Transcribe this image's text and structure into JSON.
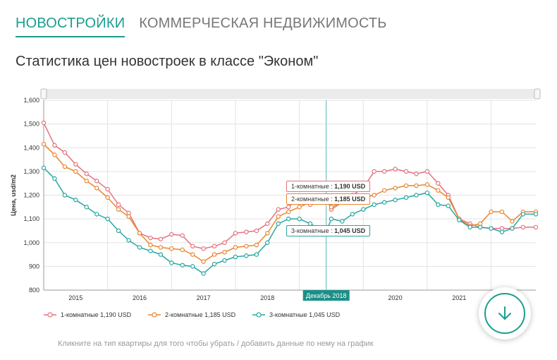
{
  "tabs": [
    {
      "label": "НОВОСТРОЙКИ",
      "active": true
    },
    {
      "label": "КОММЕРЧЕСКАЯ НЕДВИЖИМОСТЬ",
      "active": false
    }
  ],
  "page_title": "Статистика цен новостроек в классе \"Эконом\"",
  "hint": "Кликните на тип квартиры для того чтобы убрать / добавить данные по нему на график",
  "crosshair_label": "Декабрь 2018",
  "tooltips": [
    {
      "prefix": "1-комнатные : ",
      "value": "1,190 USD",
      "color": "#e5717f"
    },
    {
      "prefix": "2-комнатные : ",
      "value": "1,185 USD",
      "color": "#e8862f"
    },
    {
      "prefix": "3-комнатные : ",
      "value": "1,045 USD",
      "color": "#2aa6a0"
    }
  ],
  "legend": [
    {
      "name": "1-комнатные",
      "value": "1,190 USD",
      "color": "#e5717f"
    },
    {
      "name": "2-комнатные",
      "value": "1,185 USD",
      "color": "#e8862f"
    },
    {
      "name": "3-комнатные",
      "value": "1,045 USD",
      "color": "#2aa6a0"
    }
  ],
  "icons": {
    "fab": "arrow-down-circle-icon",
    "scroll_handle": "drag-handle-icon"
  },
  "chart_data": {
    "type": "line",
    "title": "Статистика цен новостроек в классе \"Эконом\"",
    "ylabel": "Цена, usd/m2",
    "ylim": [
      800,
      1600
    ],
    "y_ticks": [
      "800",
      "900",
      "1,000",
      "1,100",
      "1,200",
      "1,300",
      "1,400",
      "1,500",
      "1,600"
    ],
    "x_range": [
      2014.5,
      2022.2
    ],
    "x_ticks": [
      "2015",
      "2016",
      "2017",
      "2018",
      "2019",
      "2020",
      "2021"
    ],
    "grid": true,
    "legend_position": "bottom",
    "series": [
      {
        "name": "1-комнатные",
        "color": "#e5717f",
        "points": [
          [
            2014.5,
            1505
          ],
          [
            2014.67,
            1410
          ],
          [
            2014.83,
            1380
          ],
          [
            2015.0,
            1330
          ],
          [
            2015.17,
            1290
          ],
          [
            2015.33,
            1260
          ],
          [
            2015.5,
            1225
          ],
          [
            2015.67,
            1160
          ],
          [
            2015.83,
            1125
          ],
          [
            2016.0,
            1040
          ],
          [
            2016.17,
            1020
          ],
          [
            2016.33,
            1015
          ],
          [
            2016.5,
            1035
          ],
          [
            2016.67,
            1030
          ],
          [
            2016.83,
            985
          ],
          [
            2017.0,
            975
          ],
          [
            2017.17,
            985
          ],
          [
            2017.33,
            1000
          ],
          [
            2017.5,
            1040
          ],
          [
            2017.67,
            1045
          ],
          [
            2017.83,
            1050
          ],
          [
            2018.0,
            1080
          ],
          [
            2018.17,
            1140
          ],
          [
            2018.33,
            1150
          ],
          [
            2018.5,
            1190
          ],
          [
            2018.67,
            1160
          ],
          [
            2018.83,
            1175
          ],
          [
            2018.92,
            1190
          ],
          [
            2019.0,
            1140
          ],
          [
            2019.17,
            1170
          ],
          [
            2019.33,
            1200
          ],
          [
            2019.5,
            1230
          ],
          [
            2019.67,
            1300
          ],
          [
            2019.83,
            1300
          ],
          [
            2020.0,
            1310
          ],
          [
            2020.17,
            1300
          ],
          [
            2020.33,
            1290
          ],
          [
            2020.5,
            1300
          ],
          [
            2020.67,
            1250
          ],
          [
            2020.83,
            1200
          ],
          [
            2021.0,
            1100
          ],
          [
            2021.17,
            1080
          ],
          [
            2021.33,
            1065
          ],
          [
            2021.5,
            1060
          ],
          [
            2021.67,
            1060
          ],
          [
            2021.83,
            1060
          ],
          [
            2022.0,
            1065
          ],
          [
            2022.2,
            1065
          ]
        ]
      },
      {
        "name": "2-комнатные",
        "color": "#e8862f",
        "points": [
          [
            2014.5,
            1415
          ],
          [
            2014.67,
            1370
          ],
          [
            2014.83,
            1320
          ],
          [
            2015.0,
            1300
          ],
          [
            2015.17,
            1260
          ],
          [
            2015.33,
            1230
          ],
          [
            2015.5,
            1190
          ],
          [
            2015.67,
            1140
          ],
          [
            2015.83,
            1110
          ],
          [
            2016.0,
            1040
          ],
          [
            2016.17,
            990
          ],
          [
            2016.33,
            980
          ],
          [
            2016.5,
            975
          ],
          [
            2016.67,
            970
          ],
          [
            2016.83,
            950
          ],
          [
            2017.0,
            920
          ],
          [
            2017.17,
            950
          ],
          [
            2017.33,
            960
          ],
          [
            2017.5,
            980
          ],
          [
            2017.67,
            985
          ],
          [
            2017.83,
            990
          ],
          [
            2018.0,
            1040
          ],
          [
            2018.17,
            1110
          ],
          [
            2018.33,
            1130
          ],
          [
            2018.5,
            1150
          ],
          [
            2018.67,
            1170
          ],
          [
            2018.83,
            1170
          ],
          [
            2018.92,
            1185
          ],
          [
            2019.0,
            1150
          ],
          [
            2019.17,
            1170
          ],
          [
            2019.33,
            1180
          ],
          [
            2019.5,
            1190
          ],
          [
            2019.67,
            1200
          ],
          [
            2019.83,
            1220
          ],
          [
            2020.0,
            1230
          ],
          [
            2020.17,
            1240
          ],
          [
            2020.33,
            1240
          ],
          [
            2020.5,
            1245
          ],
          [
            2020.67,
            1220
          ],
          [
            2020.83,
            1190
          ],
          [
            2021.0,
            1100
          ],
          [
            2021.17,
            1070
          ],
          [
            2021.33,
            1080
          ],
          [
            2021.5,
            1130
          ],
          [
            2021.67,
            1130
          ],
          [
            2021.83,
            1090
          ],
          [
            2022.0,
            1130
          ],
          [
            2022.2,
            1130
          ]
        ]
      },
      {
        "name": "3-комнатные",
        "color": "#2aa6a0",
        "points": [
          [
            2014.5,
            1315
          ],
          [
            2014.67,
            1270
          ],
          [
            2014.83,
            1200
          ],
          [
            2015.0,
            1180
          ],
          [
            2015.17,
            1150
          ],
          [
            2015.33,
            1120
          ],
          [
            2015.5,
            1100
          ],
          [
            2015.67,
            1050
          ],
          [
            2015.83,
            1010
          ],
          [
            2016.0,
            980
          ],
          [
            2016.17,
            965
          ],
          [
            2016.33,
            950
          ],
          [
            2016.5,
            915
          ],
          [
            2016.67,
            905
          ],
          [
            2016.83,
            900
          ],
          [
            2017.0,
            870
          ],
          [
            2017.17,
            910
          ],
          [
            2017.33,
            925
          ],
          [
            2017.5,
            940
          ],
          [
            2017.67,
            945
          ],
          [
            2017.83,
            950
          ],
          [
            2018.0,
            1000
          ],
          [
            2018.17,
            1080
          ],
          [
            2018.33,
            1100
          ],
          [
            2018.5,
            1100
          ],
          [
            2018.67,
            1080
          ],
          [
            2018.83,
            1055
          ],
          [
            2018.92,
            1045
          ],
          [
            2019.0,
            1100
          ],
          [
            2019.17,
            1090
          ],
          [
            2019.33,
            1120
          ],
          [
            2019.5,
            1140
          ],
          [
            2019.67,
            1160
          ],
          [
            2019.83,
            1170
          ],
          [
            2020.0,
            1180
          ],
          [
            2020.17,
            1190
          ],
          [
            2020.33,
            1200
          ],
          [
            2020.5,
            1210
          ],
          [
            2020.67,
            1160
          ],
          [
            2020.83,
            1155
          ],
          [
            2021.0,
            1095
          ],
          [
            2021.17,
            1065
          ],
          [
            2021.33,
            1065
          ],
          [
            2021.5,
            1060
          ],
          [
            2021.67,
            1045
          ],
          [
            2021.83,
            1060
          ],
          [
            2022.0,
            1120
          ],
          [
            2022.2,
            1120
          ]
        ]
      }
    ],
    "crosshair_x": 2018.92
  }
}
